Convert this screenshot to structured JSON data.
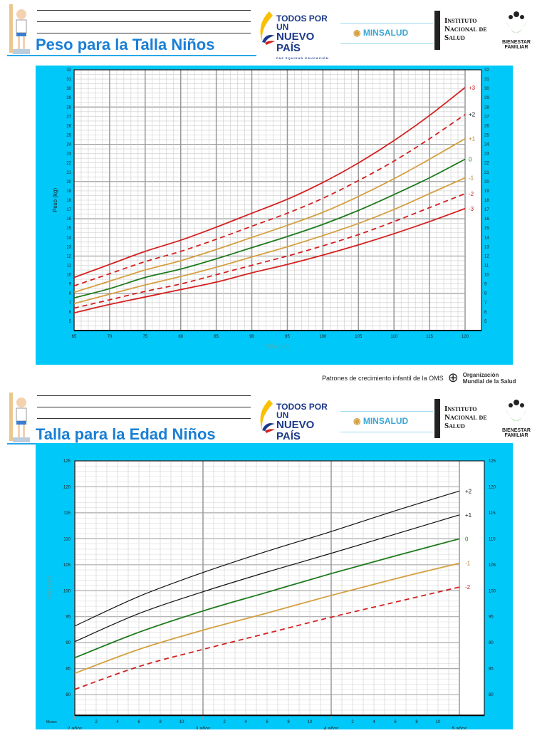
{
  "headers": [
    {
      "title": "Peso para la Talla Niños"
    },
    {
      "title": "Talla para la Edad Niños"
    }
  ],
  "logos": {
    "tpn_line1": "TODOS POR UN",
    "tpn_line2": "NUEVO PAÍS",
    "tpn_sub": "PAZ  EQUIDAD  EDUCACIÓN",
    "minsalud": "MINSALUD",
    "ins": [
      "Instituto",
      "Nacional de",
      "Salud"
    ],
    "bienestar": [
      "BIENESTAR",
      "FAMILIAR"
    ]
  },
  "footer": {
    "text": "Patrones de crecimiento infantil de la OMS",
    "who": [
      "Organización",
      "Mundial de la Salud"
    ]
  },
  "colors": {
    "panel": "#00c8f8",
    "red": "#d42020",
    "gold": "#d4a040",
    "green": "#1e7a1e",
    "black": "#111111"
  },
  "chart_data": [
    {
      "type": "line",
      "title": "",
      "xlabel": "Talla (cm)",
      "ylabel": "Peso (kg)",
      "xlim": [
        65,
        120
      ],
      "ylim": [
        4,
        32
      ],
      "grid": true,
      "x": [
        65,
        70,
        75,
        80,
        85,
        90,
        95,
        100,
        105,
        110,
        115,
        120
      ],
      "series": [
        {
          "name": "+3",
          "color": "#d42020",
          "dashed": false,
          "values": [
            9.7,
            11.1,
            12.5,
            13.7,
            15.1,
            16.6,
            18.1,
            19.9,
            22.0,
            24.4,
            27.1,
            30.1
          ]
        },
        {
          "name": "+2",
          "color": "#d42020",
          "dashed": true,
          "values": [
            8.8,
            10.1,
            11.4,
            12.5,
            13.8,
            15.2,
            16.6,
            18.2,
            20.1,
            22.2,
            24.6,
            27.2
          ]
        },
        {
          "name": "+1",
          "color": "#d4a040",
          "dashed": false,
          "values": [
            8.1,
            9.3,
            10.5,
            11.5,
            12.7,
            14.0,
            15.3,
            16.7,
            18.4,
            20.3,
            22.4,
            24.6
          ]
        },
        {
          "name": "0",
          "color": "#1e7a1e",
          "dashed": false,
          "values": [
            7.5,
            8.5,
            9.7,
            10.6,
            11.7,
            12.9,
            14.1,
            15.4,
            16.9,
            18.6,
            20.4,
            22.4
          ]
        },
        {
          "name": "-1",
          "color": "#d4a040",
          "dashed": false,
          "values": [
            6.9,
            7.9,
            8.9,
            9.8,
            10.8,
            11.9,
            13.0,
            14.2,
            15.5,
            17.0,
            18.7,
            20.4
          ]
        },
        {
          "name": "-2",
          "color": "#d42020",
          "dashed": true,
          "values": [
            6.4,
            7.3,
            8.2,
            9.0,
            10.0,
            11.0,
            12.0,
            13.1,
            14.3,
            15.7,
            17.2,
            18.7
          ]
        },
        {
          "name": "-3",
          "color": "#d42020",
          "dashed": false,
          "values": [
            5.9,
            6.8,
            7.6,
            8.4,
            9.2,
            10.2,
            11.1,
            12.1,
            13.2,
            14.4,
            15.7,
            17.1
          ]
        }
      ]
    },
    {
      "type": "line",
      "title": "",
      "xlabel": "Meses",
      "ylabel": "Talla (cm)",
      "xlim": [
        24,
        62
      ],
      "ylim": [
        76,
        125
      ],
      "grid": true,
      "year_labels": [
        "2 años",
        "3 años",
        "4 años",
        "5 años"
      ],
      "x": [
        24,
        30,
        36,
        42,
        48,
        54,
        60
      ],
      "series": [
        {
          "name": "+2",
          "color": "#111111",
          "dashed": false,
          "values": [
            93.2,
            98.9,
            103.5,
            107.6,
            111.4,
            115.4,
            119.2
          ]
        },
        {
          "name": "+1",
          "color": "#111111",
          "dashed": false,
          "values": [
            90.2,
            95.6,
            99.8,
            103.6,
            107.2,
            110.9,
            114.6
          ]
        },
        {
          "name": "0",
          "color": "#1e7a1e",
          "dashed": false,
          "values": [
            87.1,
            92.0,
            96.1,
            99.7,
            103.3,
            106.7,
            110.0
          ]
        },
        {
          "name": "-1",
          "color": "#d4a040",
          "dashed": false,
          "values": [
            84.1,
            88.7,
            92.4,
            95.7,
            99.1,
            102.3,
            105.3
          ]
        },
        {
          "name": "-2",
          "color": "#d42020",
          "dashed": true,
          "values": [
            81.0,
            85.4,
            88.7,
            91.8,
            94.9,
            97.8,
            100.7
          ]
        }
      ]
    }
  ]
}
